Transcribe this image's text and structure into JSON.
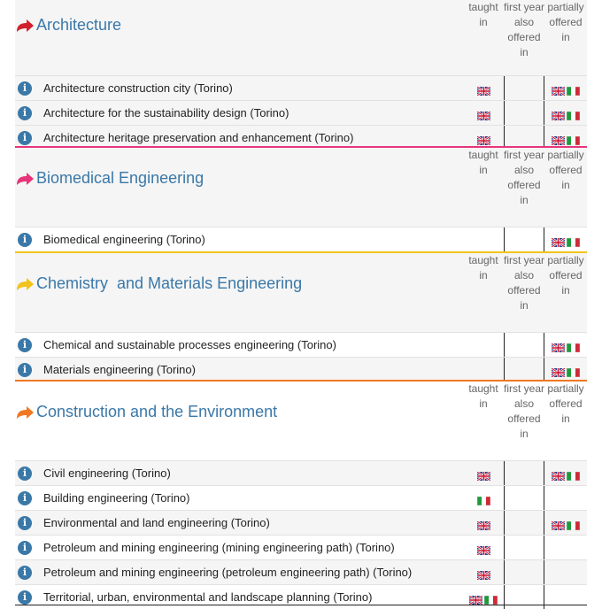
{
  "columns": {
    "taught_in": "taught in",
    "first_year": "first year also offered in",
    "partially": "partially offered in"
  },
  "colors": {
    "accent_blue": "#3a78a8",
    "architecture": "#d0202e",
    "biomedical": "#e8347a",
    "chemistry": "#f2c31c",
    "construction": "#f07822"
  },
  "sections": [
    {
      "title": "Architecture",
      "rows": [
        {
          "label": "Architecture construction city (Torino)",
          "taught": [
            "uk"
          ],
          "first": [],
          "partial": [
            "uk",
            "it"
          ]
        },
        {
          "label": "Architecture for the sustainability design (Torino)",
          "taught": [
            "uk"
          ],
          "first": [],
          "partial": [
            "uk",
            "it"
          ]
        },
        {
          "label": "Architecture heritage preservation and enhancement (Torino)",
          "taught": [
            "uk"
          ],
          "first": [],
          "partial": [
            "uk",
            "it"
          ]
        }
      ]
    },
    {
      "title": "Biomedical Engineering",
      "rows": [
        {
          "label": "Biomedical engineering (Torino)",
          "taught": [],
          "first": [],
          "partial": [
            "uk",
            "it"
          ]
        }
      ]
    },
    {
      "title": "Chemistry  and Materials Engineering",
      "rows": [
        {
          "label": "Chemical and sustainable processes engineering (Torino)",
          "taught": [],
          "first": [],
          "partial": [
            "uk",
            "it"
          ]
        },
        {
          "label": "Materials engineering (Torino)",
          "taught": [],
          "first": [],
          "partial": [
            "uk",
            "it"
          ]
        }
      ]
    },
    {
      "title": "Construction and the Environment",
      "rows": [
        {
          "label": "Civil engineering (Torino)",
          "taught": [
            "uk"
          ],
          "first": [],
          "partial": [
            "uk",
            "it"
          ]
        },
        {
          "label": "Building engineering (Torino)",
          "taught": [
            "it"
          ],
          "first": [],
          "partial": []
        },
        {
          "label": "Environmental and land engineering (Torino)",
          "taught": [
            "uk"
          ],
          "first": [],
          "partial": [
            "uk",
            "it"
          ]
        },
        {
          "label": "Petroleum and mining engineering (mining engineering path) (Torino)",
          "taught": [
            "uk"
          ],
          "first": [],
          "partial": []
        },
        {
          "label": "Petroleum and mining engineering (petroleum engineering path) (Torino)",
          "taught": [
            "uk"
          ],
          "first": [],
          "partial": []
        },
        {
          "label": "Territorial, urban, environmental and landscape planning (Torino)",
          "taught": [
            "uk",
            "it"
          ],
          "first": [],
          "partial": []
        }
      ]
    }
  ]
}
